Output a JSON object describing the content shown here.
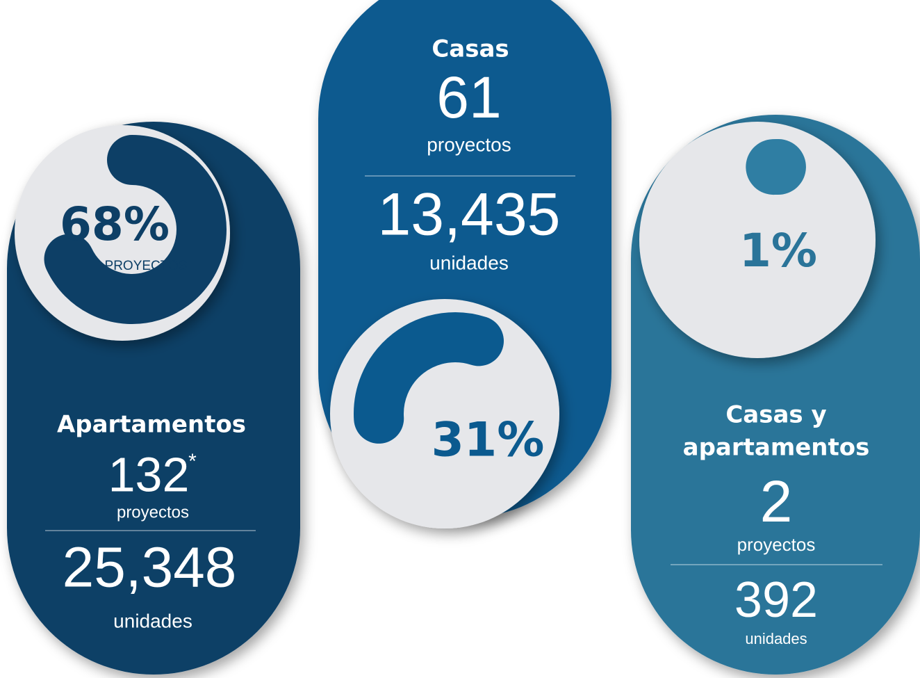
{
  "cards": [
    {
      "percent": {
        "value": 68,
        "label": "68%"
      },
      "percent_caption": "PROYECTOS",
      "title": "Apartamentos",
      "projects": "132",
      "projects_note": "*",
      "projects_label": "proyectos",
      "units": "25,348",
      "units_label": "unidades"
    },
    {
      "title": "Casas",
      "projects": "61",
      "projects_label": "proyectos",
      "units": "13,435",
      "units_label": "unidades",
      "percent": {
        "value": 31,
        "label": "31%"
      }
    },
    {
      "percent": {
        "value": 1,
        "label": "1%"
      },
      "title_lines": [
        "Casas y",
        "apartamentos"
      ],
      "projects": "2",
      "projects_label": "proyectos",
      "units": "392",
      "units_label": "unidades"
    }
  ]
}
